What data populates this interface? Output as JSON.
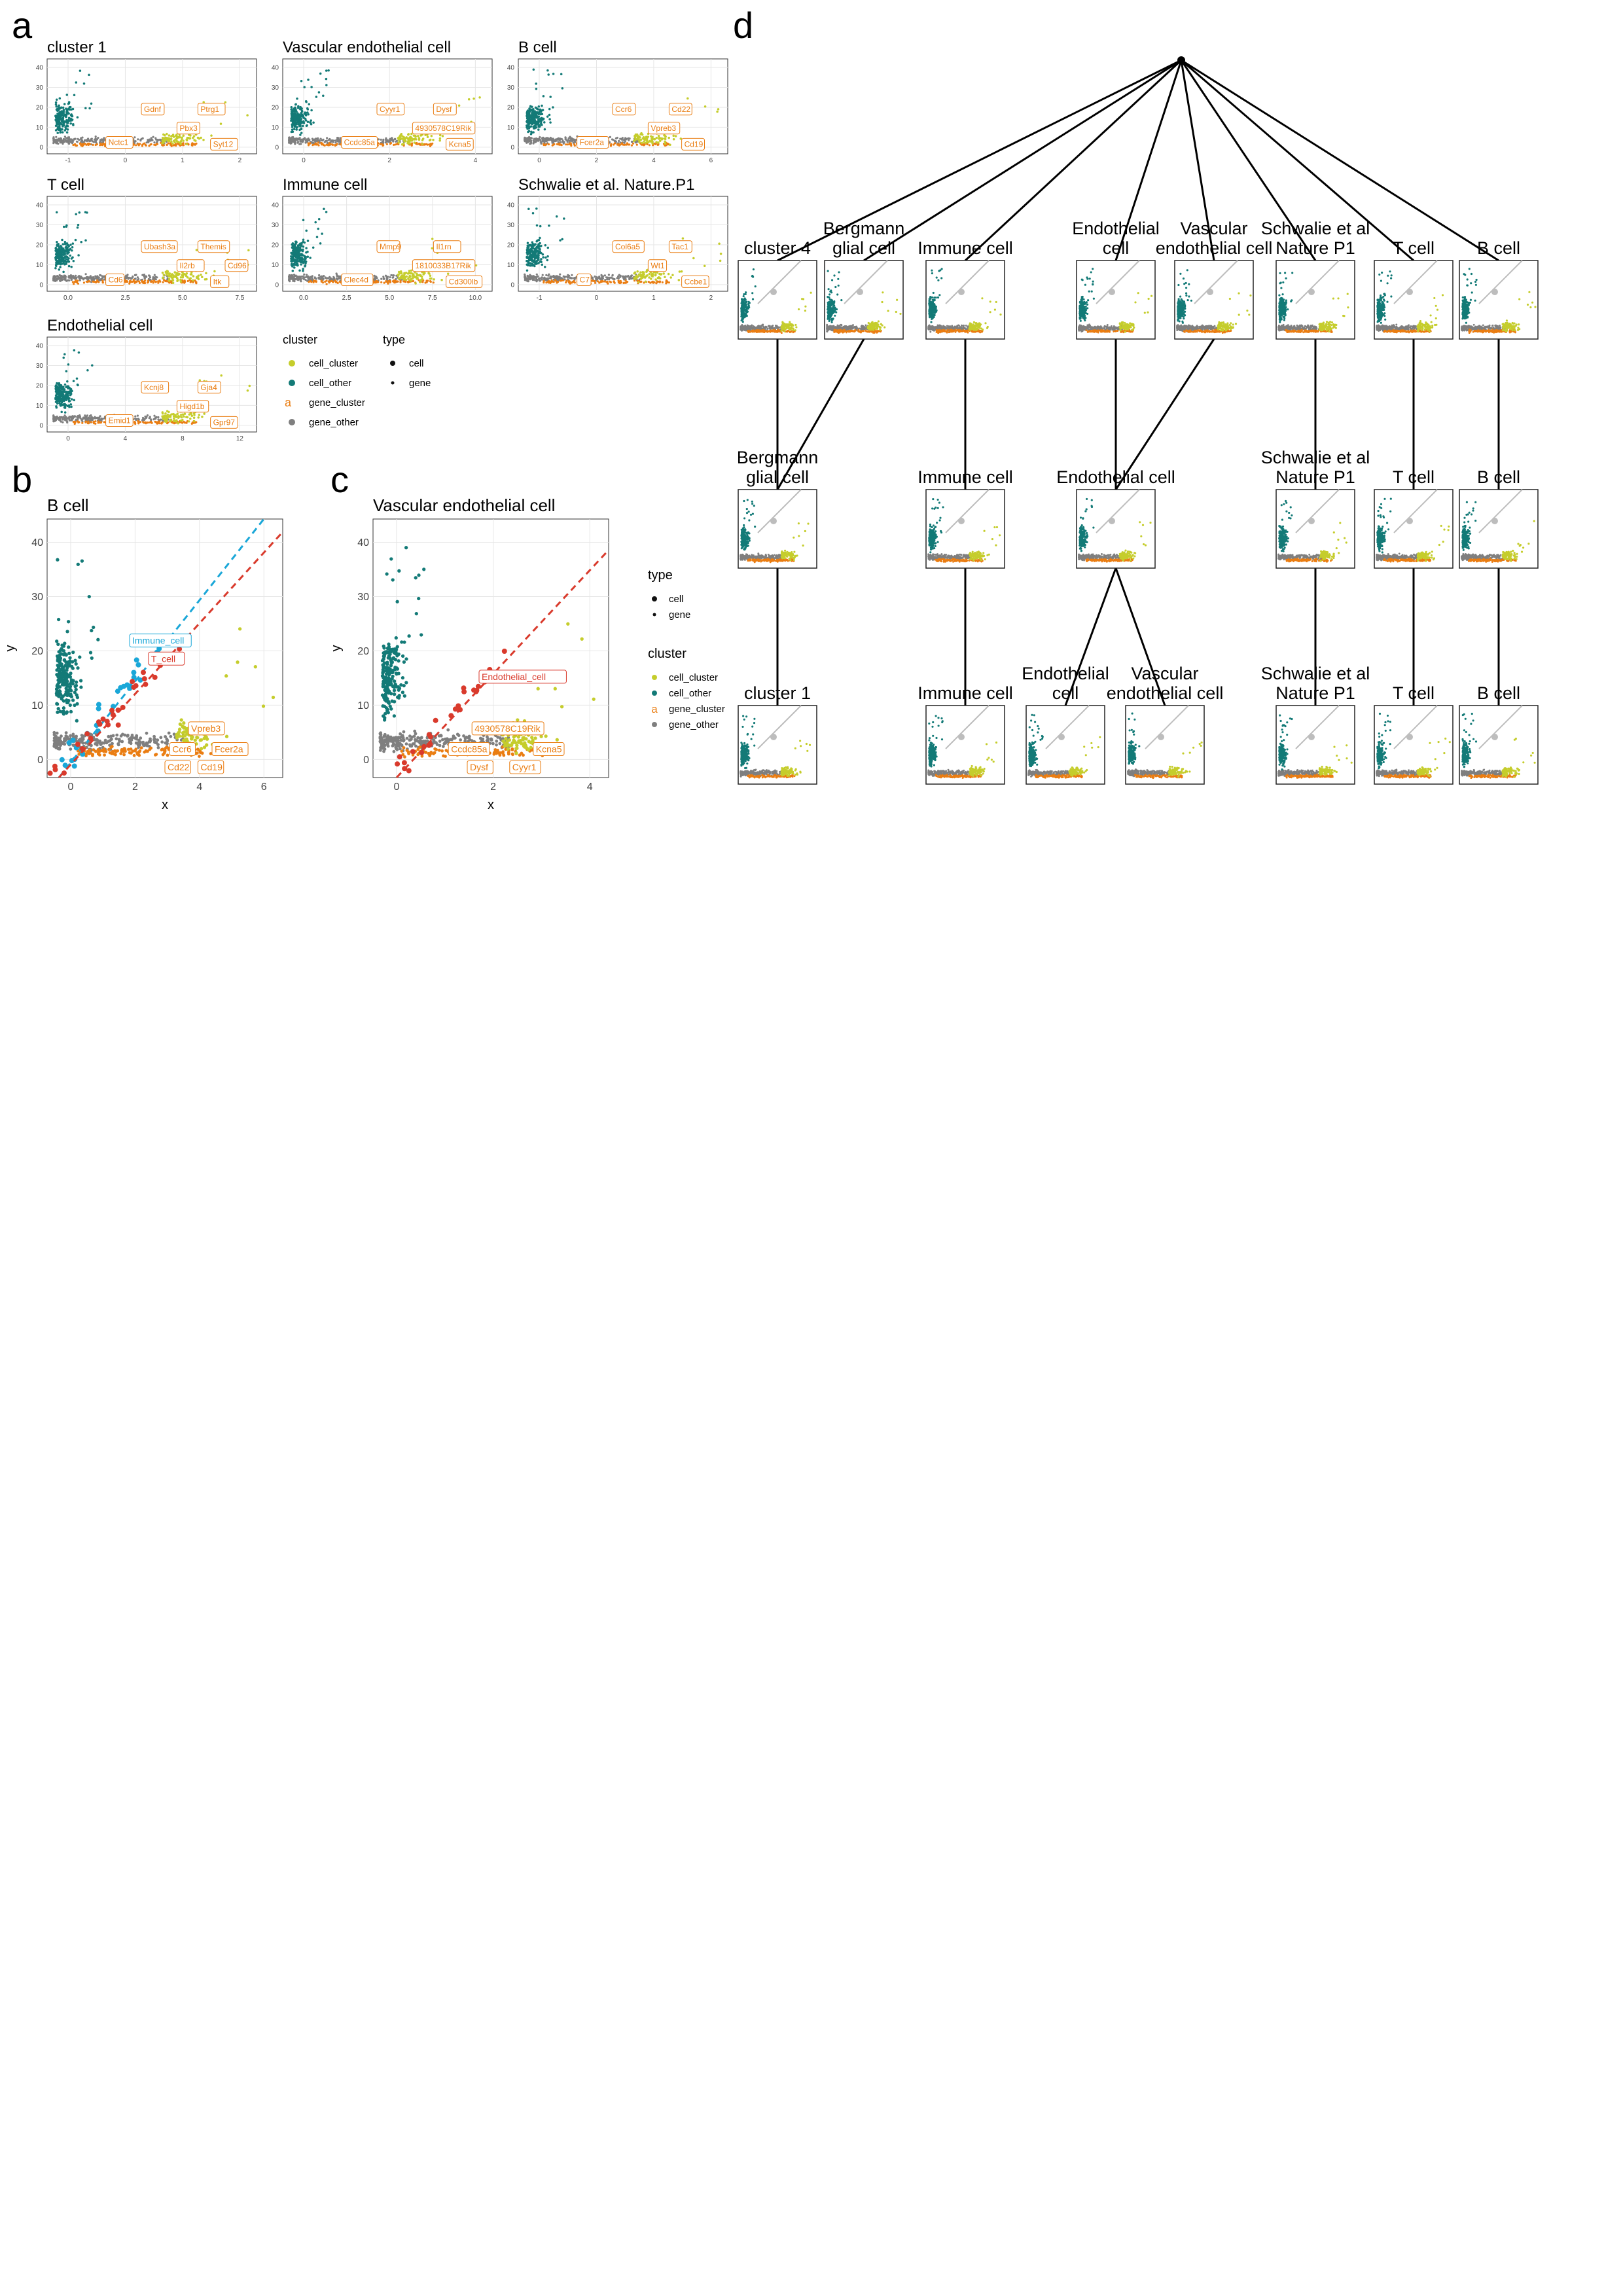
{
  "colors": {
    "cell_cluster": "#c5cd2c",
    "cell_other": "#137a77",
    "gene_cluster": "#ea7d12",
    "gene_other": "#7f7f7f",
    "guide_blue": "#1aa7d8",
    "guide_red": "#d93a2c",
    "tree_edge": "#000000",
    "tree_edge_light": "#bdbdbd"
  },
  "panel_letters": {
    "a": "a",
    "b": "b",
    "c": "c",
    "d": "d"
  },
  "panel_a": {
    "facets": [
      {
        "title": "cluster 1",
        "yticks": [
          "0",
          "10",
          "20",
          "30",
          "40"
        ],
        "xticks": [
          "-1",
          "0",
          "1",
          "2"
        ],
        "genes": [
          "Gdnf",
          "Pbx3",
          "Nctc1",
          "Ptrg1",
          "Syt12"
        ]
      },
      {
        "title": "Vascular endothelial cell",
        "yticks": [
          "0",
          "10",
          "20",
          "30",
          "40"
        ],
        "xticks": [
          "0",
          "2",
          "4"
        ],
        "genes": [
          "Cyyr1",
          "4930578C19Rik",
          "Ccdc85a",
          "Dysf",
          "Kcna5"
        ]
      },
      {
        "title": "B cell",
        "yticks": [
          "0",
          "10",
          "20",
          "30",
          "40"
        ],
        "xticks": [
          "0",
          "2",
          "4",
          "6"
        ],
        "genes": [
          "Ccr6",
          "Vpreb3",
          "Fcer2a",
          "Cd22",
          "Cd19"
        ]
      },
      {
        "title": "T cell",
        "yticks": [
          "0",
          "10",
          "20",
          "30",
          "40"
        ],
        "xticks": [
          "0.0",
          "2.5",
          "5.0",
          "7.5"
        ],
        "genes": [
          "Ubash3a",
          "Il2rb",
          "Cd6",
          "Themis",
          "Itk",
          "Cd96"
        ]
      },
      {
        "title": "Immune cell",
        "yticks": [
          "0",
          "10",
          "20",
          "30",
          "40"
        ],
        "xticks": [
          "0.0",
          "2.5",
          "5.0",
          "7.5",
          "10.0"
        ],
        "genes": [
          "Mmp9",
          "1810033B17Rik",
          "Clec4d",
          "Il1rn",
          "Cd300lb"
        ]
      },
      {
        "title": "Schwalie et al. Nature.P1",
        "yticks": [
          "0",
          "10",
          "20",
          "30",
          "40"
        ],
        "xticks": [
          "-1",
          "0",
          "1",
          "2"
        ],
        "genes": [
          "Col6a5",
          "Wt1",
          "C7",
          "Tac1",
          "Ccbe1"
        ]
      },
      {
        "title": "Endothelial cell",
        "yticks": [
          "0",
          "10",
          "20",
          "30",
          "40"
        ],
        "xticks": [
          "0",
          "4",
          "8",
          "12"
        ],
        "genes": [
          "Kcnj8",
          "Higd1b",
          "Emid1",
          "Gja4",
          "Gpr97"
        ]
      }
    ],
    "legend": {
      "cluster_title": "cluster",
      "cluster_items": [
        "cell_cluster",
        "cell_other",
        "gene_cluster",
        "gene_other"
      ],
      "gene_cluster_key": "a",
      "type_title": "type",
      "type_items": [
        "cell",
        "gene"
      ]
    }
  },
  "panel_b": {
    "title": "B cell",
    "xlabel": "x",
    "ylabel": "y",
    "xticks": [
      "0",
      "2",
      "4",
      "6"
    ],
    "yticks": [
      "0",
      "10",
      "20",
      "30",
      "40"
    ],
    "guide_labels": [
      "Immune_cell",
      "T_cell"
    ],
    "genes": [
      "Vpreb3",
      "Ccr6",
      "Fcer2a",
      "Cd22",
      "Cd19"
    ]
  },
  "panel_c": {
    "title": "Vascular endothelial cell",
    "xlabel": "x",
    "ylabel": "y",
    "xticks": [
      "0",
      "2",
      "4"
    ],
    "yticks": [
      "0",
      "10",
      "20",
      "30",
      "40"
    ],
    "guide_labels": [
      "Endothelial_cell"
    ],
    "genes": [
      "4930578C19Rik",
      "Ccdc85a",
      "Kcna5",
      "Dysf",
      "Cyyr1"
    ],
    "legend": {
      "type_title": "type",
      "type_items": [
        "cell",
        "gene"
      ],
      "cluster_title": "cluster",
      "cluster_items": [
        "cell_cluster",
        "cell_other",
        "gene_cluster",
        "gene_other"
      ],
      "gene_cluster_key": "a"
    }
  },
  "panel_d": {
    "row1": [
      "cluster 4",
      "Bergmann\nglial cell",
      "Immune cell",
      "Endothelial\ncell",
      "Vascular\nendothelial cell",
      "Schwalie et al\nNature P1",
      "T cell",
      "B cell"
    ],
    "row2": [
      "Bergmann\nglial cell",
      "Immune cell",
      "Endothelial cell",
      "Schwalie et al\nNature P1",
      "T cell",
      "B cell"
    ],
    "row3": [
      "cluster 1",
      "Immune cell",
      "Endothelial\ncell",
      "Vascular\nendothelial cell",
      "Schwalie et al\nNature P1",
      "T cell",
      "B cell"
    ]
  }
}
